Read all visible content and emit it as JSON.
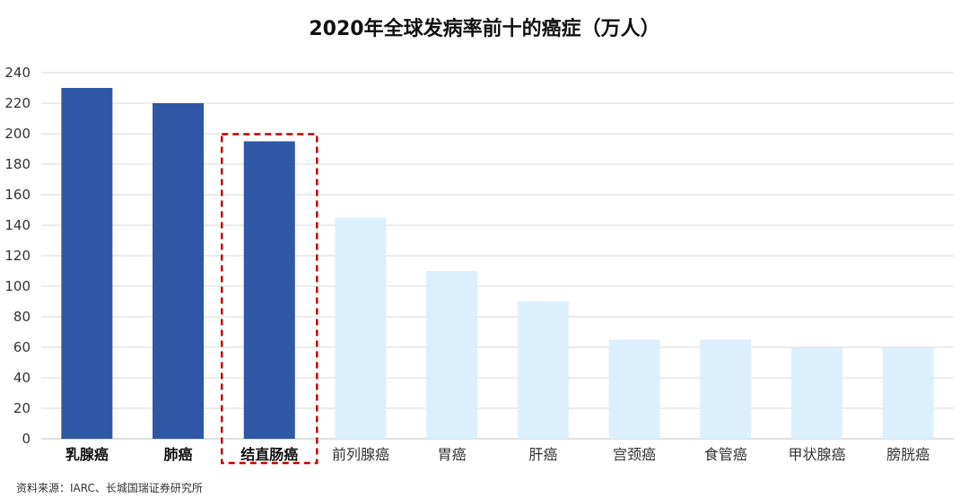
{
  "title": "2020年全球发病率前十的癌症（万人）",
  "source": "资料来源：IARC、长城国瑞证券研究所",
  "colors": {
    "highlight": "#2E57A5",
    "normal": "#DCEFFC",
    "box": "#C00000",
    "grid": "#D9D9D9"
  },
  "chart_data": {
    "type": "bar",
    "title": "2020年全球发病率前十的癌症（万人）",
    "categories": [
      "乳腺癌",
      "肺癌",
      "结直肠癌",
      "前列腺癌",
      "胃癌",
      "肝癌",
      "宫颈癌",
      "食管癌",
      "甲状腺癌",
      "膀胱癌"
    ],
    "values": [
      230,
      220,
      195,
      145,
      110,
      90,
      65,
      65,
      60,
      60
    ],
    "highlighted": [
      true,
      true,
      true,
      false,
      false,
      false,
      false,
      false,
      false,
      false
    ],
    "boxed_category": "结直肠癌",
    "ylim": [
      0,
      240
    ],
    "yticks": [
      0,
      20,
      40,
      60,
      80,
      100,
      120,
      140,
      160,
      180,
      200,
      220,
      240
    ],
    "grid": true,
    "legend": "none"
  }
}
